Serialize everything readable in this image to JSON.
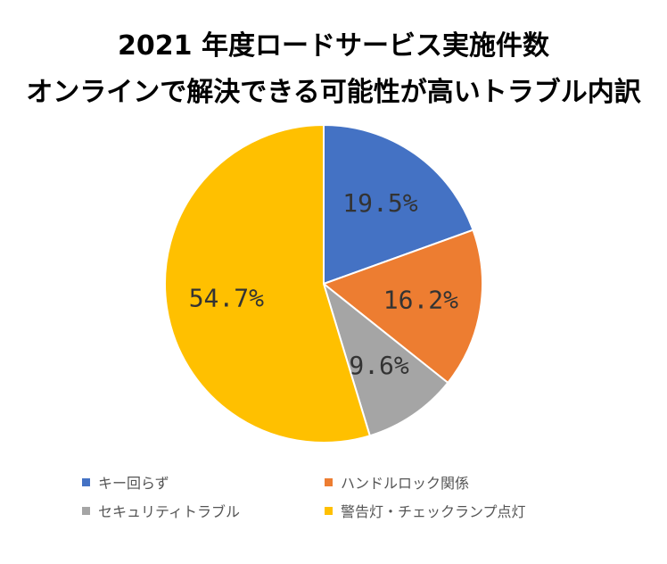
{
  "chart_data": {
    "type": "pie",
    "title": "2021 年度ロードサービス実施件数",
    "subtitle": "オンラインで解決できる可能性が高いトラブル内訳",
    "categories": [
      "キー回らず",
      "ハンドルロック関係",
      "セキュリティトラブル",
      "警告灯・チェックランプ点灯"
    ],
    "values": [
      19.5,
      16.2,
      9.6,
      54.7
    ],
    "data_labels": [
      "19.5%",
      "16.2%",
      "9.6%",
      "54.7%"
    ],
    "colors": [
      "#4472C4",
      "#ED7D31",
      "#A5A5A5",
      "#FFC000"
    ],
    "legend_position": "bottom"
  }
}
